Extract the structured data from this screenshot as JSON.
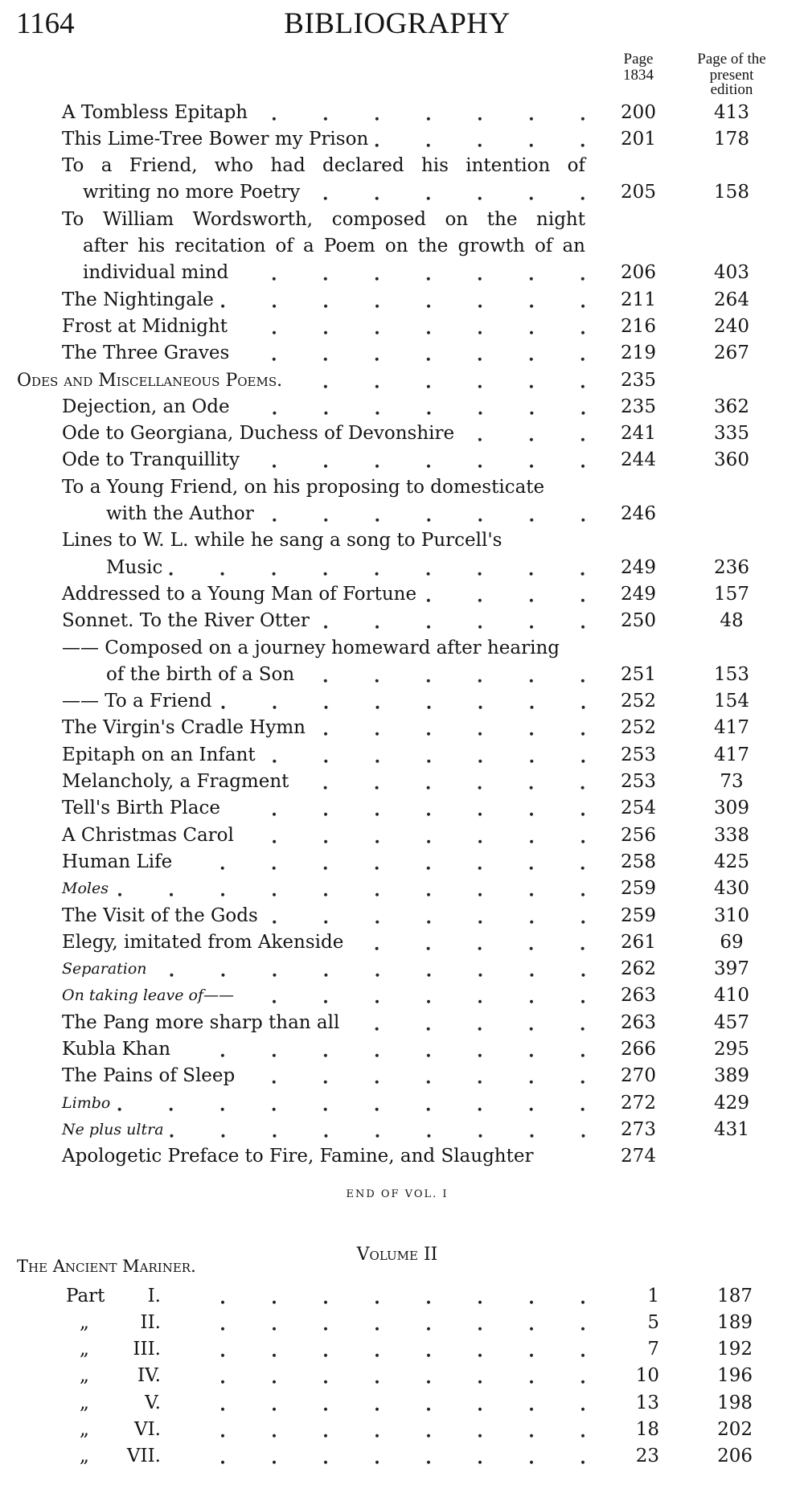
{
  "header": {
    "folio": "1164",
    "title": "BIBLIOGRAPHY"
  },
  "columns": {
    "page_1834": [
      "Page",
      "1834"
    ],
    "present_edition": [
      "Page of the",
      "present",
      "edition"
    ]
  },
  "volume1": {
    "rows": [
      {
        "text": "A Tombless Epitaph",
        "indent": 1,
        "page": "200",
        "edition": "413",
        "leader": true
      },
      {
        "text": "This Lime-Tree Bower my Prison",
        "indent": 1,
        "page": "201",
        "edition": "178",
        "leader": true
      },
      {
        "text": "To a Friend, who had declared his intention of",
        "indent": 1,
        "justify": true
      },
      {
        "text": "writing no more Poetry",
        "indent": 2,
        "page": "205",
        "edition": "158",
        "leader": true
      },
      {
        "text": "To William Wordsworth, composed on the night",
        "indent": 1,
        "justify": true
      },
      {
        "text": "after his recitation of a Poem on the growth of an",
        "indent": 2,
        "justify": true
      },
      {
        "text": "individual mind",
        "indent": 2,
        "page": "206",
        "edition": "403",
        "leader": true
      },
      {
        "text": "The Nightingale",
        "indent": 1,
        "page": "211",
        "edition": "264",
        "leader": true
      },
      {
        "text": "Frost at Midnight",
        "indent": 1,
        "page": "216",
        "edition": "240",
        "leader": true
      },
      {
        "text": "The Three Graves",
        "indent": 1,
        "page": "219",
        "edition": "267",
        "leader": true
      },
      {
        "text": "Odes and Miscellaneous Poems.",
        "indent": 0,
        "style": "smallcaps",
        "page": "235",
        "leader": true
      },
      {
        "text": "Dejection, an Ode",
        "indent": 1,
        "page": "235",
        "edition": "362",
        "leader": true
      },
      {
        "text": "Ode to Georgiana, Duchess of Devonshire",
        "indent": 1,
        "page": "241",
        "edition": "335",
        "leader": true
      },
      {
        "text": "Ode to Tranquillity",
        "indent": 1,
        "page": "244",
        "edition": "360",
        "leader": true
      },
      {
        "text": "To a Young Friend, on his proposing to domesticate",
        "indent": 1
      },
      {
        "text": "with the Author",
        "indent": 3,
        "page": "246",
        "leader": true
      },
      {
        "text": "Lines to W. L. while he sang a song to Purcell's",
        "indent": 1
      },
      {
        "text": "Music",
        "indent": 3,
        "page": "249",
        "edition": "236",
        "leader": true
      },
      {
        "text": "Addressed to a Young Man of Fortune",
        "indent": 1,
        "page": "249",
        "edition": "157",
        "leader": true
      },
      {
        "text": "Sonnet.  To the River Otter",
        "indent": 1,
        "page": "250",
        "edition": "48",
        "leader": true
      },
      {
        "text": "—— Composed on a journey homeward after hearing",
        "indent": 1
      },
      {
        "text": "of the birth of a Son",
        "indent": 3,
        "page": "251",
        "edition": "153",
        "leader": true
      },
      {
        "text": "—— To a Friend",
        "indent": 1,
        "page": "252",
        "edition": "154",
        "leader": true
      },
      {
        "text": "The Virgin's Cradle Hymn",
        "indent": 1,
        "page": "252",
        "edition": "417",
        "leader": true
      },
      {
        "text": "Epitaph on an Infant",
        "indent": 1,
        "page": "253",
        "edition": "417",
        "leader": true
      },
      {
        "text": "Melancholy, a Fragment",
        "indent": 1,
        "page": "253",
        "edition": "73",
        "leader": true
      },
      {
        "text": "Tell's Birth Place",
        "indent": 1,
        "page": "254",
        "edition": "309",
        "leader": true
      },
      {
        "text": "A Christmas Carol",
        "indent": 1,
        "page": "256",
        "edition": "338",
        "leader": true
      },
      {
        "text": "Human Life",
        "indent": 1,
        "page": "258",
        "edition": "425",
        "leader": true
      },
      {
        "text": "Moles",
        "indent": 1,
        "style": "italic",
        "page": "259",
        "edition": "430",
        "leader": true
      },
      {
        "text": "The Visit of the Gods",
        "indent": 1,
        "page": "259",
        "edition": "310",
        "leader": true
      },
      {
        "text": "Elegy, imitated from Akenside",
        "indent": 1,
        "page": "261",
        "edition": "69",
        "leader": true
      },
      {
        "text": "Separation",
        "indent": 1,
        "style": "italic",
        "page": "262",
        "edition": "397",
        "leader": true
      },
      {
        "text": "On taking leave of——",
        "indent": 1,
        "style": "italic",
        "page": "263",
        "edition": "410",
        "leader": true
      },
      {
        "text": "The Pang more sharp than all",
        "indent": 1,
        "page": "263",
        "edition": "457",
        "leader": true
      },
      {
        "text": "Kubla Khan",
        "indent": 1,
        "page": "266",
        "edition": "295",
        "leader": true
      },
      {
        "text": "The Pains of Sleep",
        "indent": 1,
        "page": "270",
        "edition": "389",
        "leader": true
      },
      {
        "text": "Limbo",
        "indent": 1,
        "style": "italic",
        "page": "272",
        "edition": "429",
        "leader": true
      },
      {
        "text": "Ne plus ultra",
        "indent": 1,
        "style": "italic",
        "page": "273",
        "edition": "431",
        "leader": true
      },
      {
        "text": "Apologetic Preface to Fire, Famine, and Slaughter",
        "indent": 1,
        "page": "274"
      }
    ],
    "end_note": "END OF VOL. I"
  },
  "volume2": {
    "heading": "Volume II",
    "section": "The Ancient Mariner.",
    "rows": [
      {
        "label": "Part",
        "numeral": "I.",
        "page": "1",
        "edition": "187"
      },
      {
        "label": "„",
        "numeral": "II.",
        "page": "5",
        "edition": "189"
      },
      {
        "label": "„",
        "numeral": "III.",
        "page": "7",
        "edition": "192"
      },
      {
        "label": "„",
        "numeral": "IV.",
        "page": "10",
        "edition": "196"
      },
      {
        "label": "„",
        "numeral": "V.",
        "page": "13",
        "edition": "198"
      },
      {
        "label": "„",
        "numeral": "VI.",
        "page": "18",
        "edition": "202"
      },
      {
        "label": "„",
        "numeral": "VII.",
        "page": "23",
        "edition": "206"
      }
    ]
  }
}
